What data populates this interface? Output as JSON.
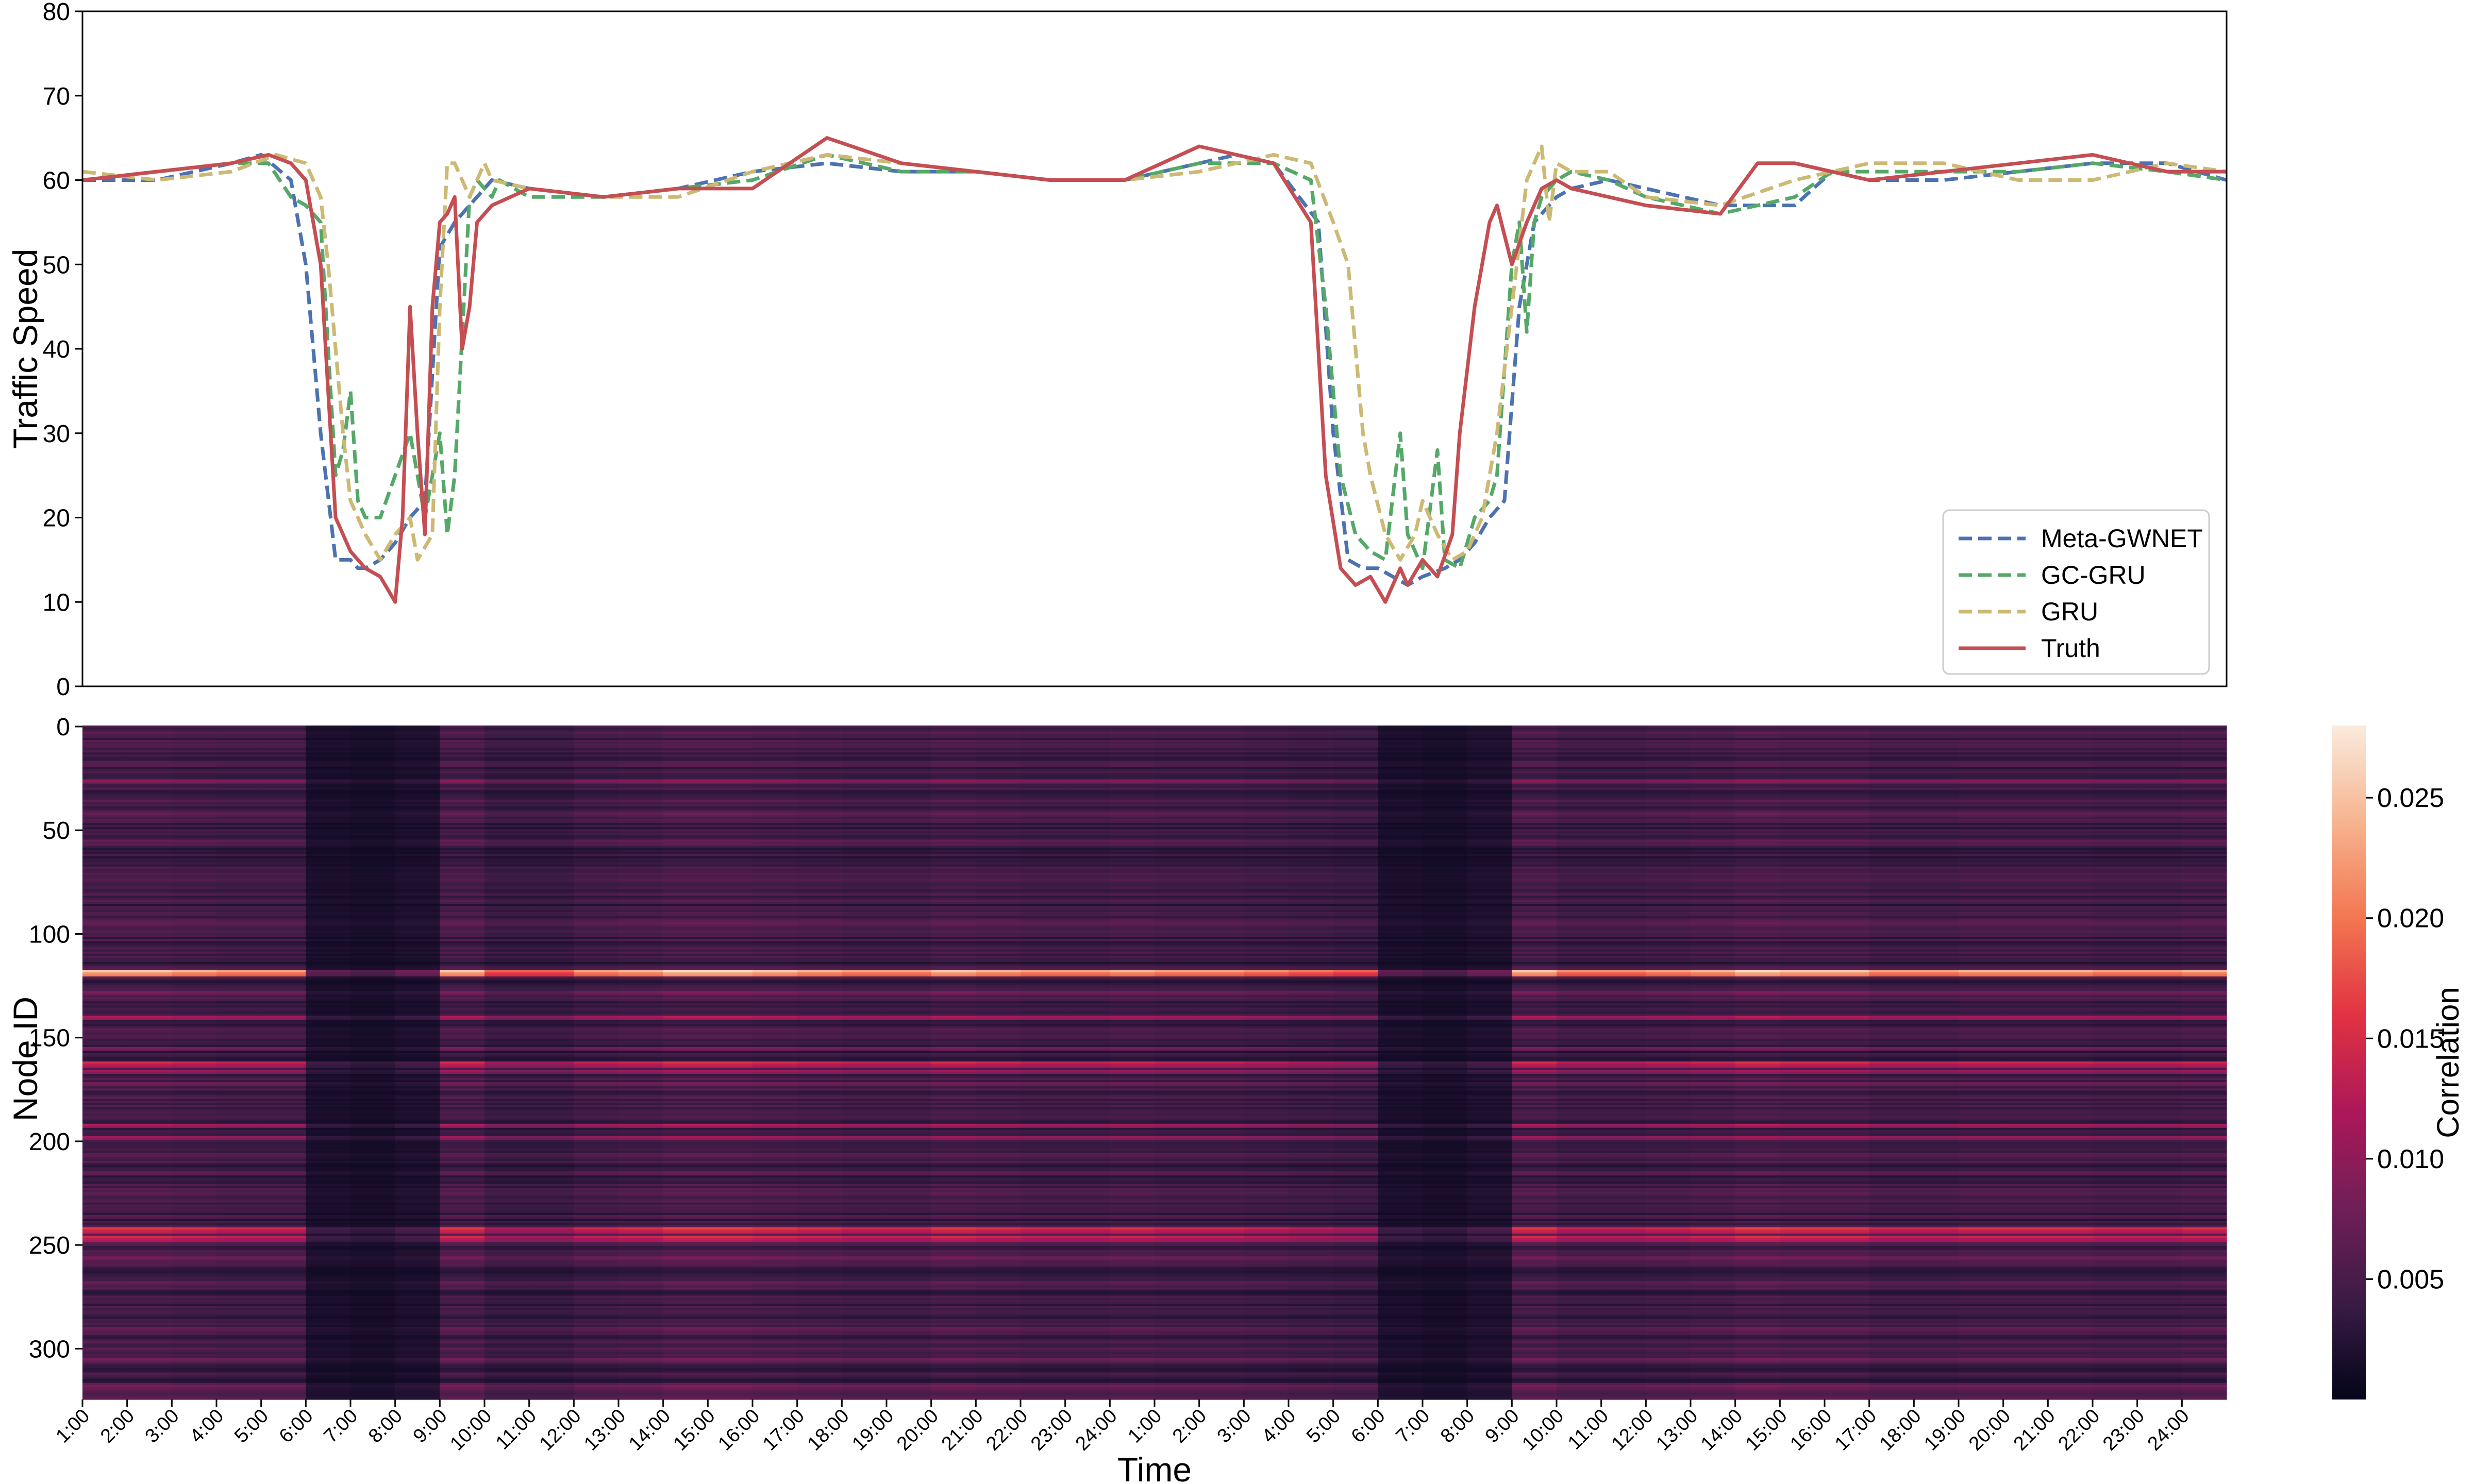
{
  "chart_data": [
    {
      "type": "line",
      "ylabel": "Traffic Speed",
      "xlabel": "",
      "ylim": [
        0,
        80
      ],
      "yticks": [
        "0",
        "10",
        "20",
        "30",
        "40",
        "50",
        "60",
        "70",
        "80"
      ],
      "grid": false,
      "legend_position": "bottom-right",
      "x_range": [
        0,
        576
      ],
      "series": [
        {
          "name": "Meta-GWNET",
          "color": "#4c72b0",
          "dash": "dashed",
          "x": [
            0,
            20,
            40,
            48,
            56,
            60,
            64,
            68,
            72,
            74,
            76,
            80,
            84,
            88,
            92,
            96,
            100,
            104,
            110,
            120,
            140,
            160,
            180,
            200,
            220,
            240,
            260,
            280,
            300,
            310,
            320,
            332,
            336,
            340,
            344,
            348,
            352,
            356,
            360,
            366,
            370,
            374,
            378,
            382,
            386,
            390,
            396,
            400,
            410,
            420,
            440,
            460,
            470,
            480,
            500,
            520,
            540,
            560,
            576
          ],
          "y": [
            60,
            60,
            62,
            63,
            60,
            50,
            30,
            15,
            15,
            14,
            14,
            15,
            17,
            20,
            22,
            52,
            55,
            57,
            60,
            59,
            58,
            59,
            61,
            62,
            61,
            61,
            60,
            60,
            62,
            63,
            62,
            55,
            30,
            15,
            14,
            14,
            13,
            12,
            13,
            14,
            15,
            17,
            20,
            22,
            45,
            55,
            58,
            59,
            60,
            59,
            57,
            57,
            61,
            60,
            60,
            61,
            62,
            62,
            60
          ]
        },
        {
          "name": "GC-GRU",
          "color": "#55a868",
          "dash": "dashed",
          "x": [
            0,
            20,
            40,
            50,
            56,
            60,
            64,
            66,
            68,
            70,
            72,
            74,
            76,
            80,
            84,
            88,
            92,
            94,
            96,
            98,
            100,
            104,
            106,
            110,
            112,
            116,
            120,
            140,
            160,
            180,
            200,
            220,
            240,
            260,
            280,
            300,
            320,
            330,
            334,
            338,
            342,
            346,
            350,
            354,
            356,
            360,
            364,
            366,
            370,
            374,
            378,
            380,
            384,
            386,
            388,
            390,
            392,
            396,
            400,
            410,
            420,
            440,
            460,
            470,
            480,
            500,
            520,
            540,
            560,
            576
          ],
          "y": [
            60,
            61,
            62,
            62,
            58,
            57,
            55,
            40,
            25,
            28,
            35,
            22,
            20,
            20,
            25,
            30,
            20,
            25,
            30,
            18,
            25,
            58,
            60,
            58,
            60,
            59,
            58,
            58,
            59,
            60,
            63,
            61,
            61,
            60,
            60,
            62,
            62,
            60,
            45,
            25,
            18,
            16,
            15,
            30,
            18,
            14,
            28,
            15,
            14,
            20,
            22,
            25,
            50,
            55,
            42,
            55,
            58,
            60,
            61,
            60,
            58,
            56,
            58,
            61,
            61,
            61,
            61,
            62,
            61,
            60
          ]
        },
        {
          "name": "GRU",
          "color": "#ccb974",
          "dash": "dashed",
          "x": [
            0,
            20,
            40,
            52,
            60,
            64,
            66,
            70,
            72,
            76,
            80,
            84,
            88,
            90,
            94,
            96,
            98,
            100,
            104,
            108,
            110,
            120,
            140,
            160,
            180,
            200,
            220,
            240,
            260,
            280,
            300,
            320,
            330,
            336,
            340,
            344,
            346,
            350,
            354,
            358,
            360,
            364,
            368,
            372,
            376,
            380,
            384,
            388,
            392,
            394,
            396,
            400,
            410,
            420,
            440,
            460,
            470,
            480,
            500,
            520,
            540,
            560,
            576
          ],
          "y": [
            61,
            60,
            61,
            63,
            62,
            58,
            50,
            30,
            22,
            18,
            15,
            18,
            20,
            15,
            18,
            45,
            62,
            62,
            58,
            62,
            60,
            59,
            58,
            58,
            61,
            63,
            62,
            61,
            60,
            60,
            61,
            63,
            62,
            55,
            50,
            30,
            25,
            18,
            15,
            18,
            22,
            18,
            15,
            16,
            20,
            30,
            45,
            60,
            64,
            55,
            62,
            61,
            61,
            58,
            57,
            60,
            61,
            62,
            62,
            60,
            60,
            62,
            61
          ]
        },
        {
          "name": "Truth",
          "color": "#c44e52",
          "dash": "solid",
          "x": [
            0,
            20,
            40,
            50,
            56,
            60,
            64,
            68,
            72,
            76,
            80,
            84,
            86,
            88,
            90,
            92,
            94,
            96,
            98,
            100,
            102,
            104,
            106,
            110,
            120,
            140,
            160,
            180,
            200,
            220,
            240,
            260,
            280,
            300,
            320,
            330,
            334,
            338,
            342,
            346,
            350,
            354,
            356,
            360,
            364,
            368,
            370,
            374,
            378,
            380,
            384,
            388,
            392,
            396,
            400,
            410,
            420,
            440,
            450,
            454,
            460,
            480,
            500,
            520,
            540,
            560,
            576
          ],
          "y": [
            60,
            61,
            62,
            63,
            62,
            60,
            50,
            20,
            16,
            14,
            13,
            10,
            20,
            45,
            30,
            18,
            45,
            55,
            56,
            58,
            40,
            45,
            55,
            57,
            59,
            58,
            59,
            59,
            65,
            62,
            61,
            60,
            60,
            64,
            62,
            55,
            25,
            14,
            12,
            13,
            10,
            14,
            12,
            15,
            13,
            18,
            30,
            45,
            55,
            57,
            50,
            55,
            59,
            60,
            59,
            58,
            57,
            56,
            62,
            62,
            62,
            60,
            61,
            62,
            63,
            61,
            61
          ]
        }
      ]
    },
    {
      "type": "heatmap",
      "xlabel": "Time",
      "ylabel": "Node ID",
      "y_range": [
        0,
        325
      ],
      "yticks": [
        "0",
        "50",
        "100",
        "150",
        "200",
        "250",
        "300"
      ],
      "xticks": [
        "1:00",
        "2:00",
        "3:00",
        "4:00",
        "5:00",
        "6:00",
        "7:00",
        "8:00",
        "9:00",
        "10:00",
        "11:00",
        "12:00",
        "13:00",
        "14:00",
        "15:00",
        "16:00",
        "17:00",
        "18:00",
        "19:00",
        "20:00",
        "21:00",
        "22:00",
        "23:00",
        "24:00",
        "1:00",
        "2:00",
        "3:00",
        "4:00",
        "5:00",
        "6:00",
        "7:00",
        "8:00",
        "9:00",
        "10:00",
        "11:00",
        "12:00",
        "13:00",
        "14:00",
        "15:00",
        "16:00",
        "17:00",
        "18:00",
        "19:00",
        "20:00",
        "21:00",
        "22:00",
        "23:00",
        "24:00"
      ],
      "colorbar": {
        "label": "Correlation",
        "range": [
          0,
          0.028
        ],
        "ticks": [
          "0.005",
          "0.010",
          "0.015",
          "0.020",
          "0.025"
        ],
        "colors": [
          "#03051a",
          "#3a1b44",
          "#701f57",
          "#ad1759",
          "#e13342",
          "#f37651",
          "#f6b48f",
          "#faebdd"
        ]
      },
      "column_intensity": [
        0.95,
        0.95,
        0.9,
        0.85,
        0.85,
        0.25,
        0.2,
        0.3,
        0.95,
        0.7,
        0.7,
        0.85,
        0.9,
        1.0,
        1.0,
        0.95,
        0.9,
        0.85,
        0.85,
        0.95,
        0.9,
        0.85,
        0.85,
        0.9,
        0.85,
        0.85,
        0.8,
        0.75,
        0.7,
        0.25,
        0.2,
        0.3,
        0.95,
        0.8,
        0.8,
        0.85,
        0.9,
        1.0,
        0.95,
        0.95,
        0.85,
        0.85,
        0.9,
        0.9,
        0.9,
        0.85,
        0.85,
        0.9
      ],
      "hot_rows": [
        [
          26,
          0.35
        ],
        [
          42,
          0.25
        ],
        [
          55,
          0.25
        ],
        [
          74,
          0.2
        ],
        [
          95,
          0.25
        ],
        [
          118,
          0.95
        ],
        [
          128,
          0.3
        ],
        [
          140,
          0.45
        ],
        [
          155,
          0.3
        ],
        [
          162,
          0.55
        ],
        [
          166,
          0.4
        ],
        [
          172,
          0.3
        ],
        [
          192,
          0.45
        ],
        [
          198,
          0.4
        ],
        [
          215,
          0.25
        ],
        [
          242,
          0.6
        ],
        [
          246,
          0.55
        ],
        [
          256,
          0.3
        ],
        [
          268,
          0.25
        ],
        [
          290,
          0.25
        ],
        [
          305,
          0.3
        ],
        [
          318,
          0.3
        ]
      ]
    }
  ]
}
